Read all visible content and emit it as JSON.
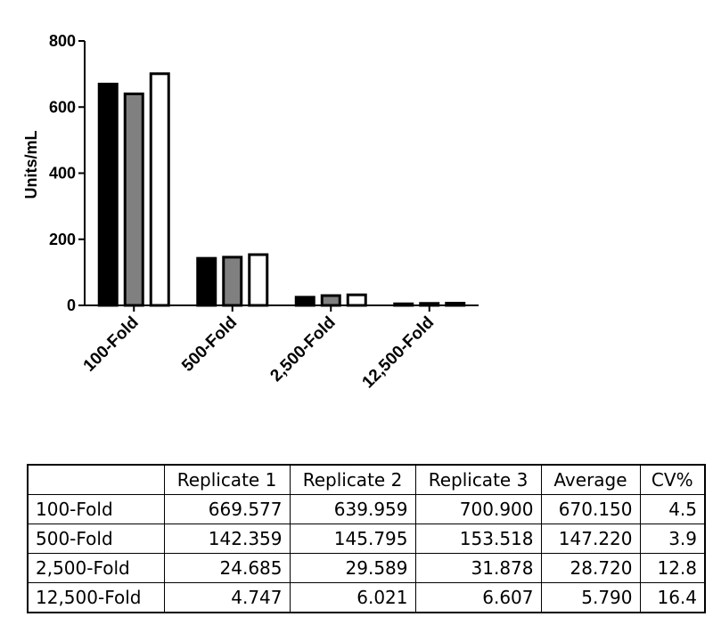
{
  "chart_data": {
    "type": "bar",
    "ylabel": "Units/mL",
    "ylim": [
      0,
      800
    ],
    "yticks": [
      "0",
      "200",
      "400",
      "600",
      "800"
    ],
    "categories": [
      "100-Fold",
      "500-Fold",
      "2,500-Fold",
      "12,500-Fold"
    ],
    "series": [
      {
        "color": "#000000",
        "values": [
          669.577,
          142.359,
          24.685,
          4.747
        ]
      },
      {
        "color": "#808080",
        "values": [
          639.959,
          145.795,
          29.589,
          6.021
        ]
      },
      {
        "color": "#ffffff",
        "values": [
          700.9,
          153.518,
          31.878,
          6.607
        ]
      }
    ],
    "grid": false,
    "legend": "none"
  },
  "table": {
    "headers": [
      "",
      "Replicate 1",
      "Replicate 2",
      "Replicate 3",
      "Average",
      "CV%"
    ],
    "rows": [
      [
        "100-Fold",
        "669.577",
        "639.959",
        "700.900",
        "670.150",
        "4.5"
      ],
      [
        "500-Fold",
        "142.359",
        "145.795",
        "153.518",
        "147.220",
        "3.9"
      ],
      [
        "2,500-Fold",
        "24.685",
        "29.589",
        "31.878",
        "28.720",
        "12.8"
      ],
      [
        "12,500-Fold",
        "4.747",
        "6.021",
        "6.607",
        "5.790",
        "16.4"
      ]
    ]
  }
}
